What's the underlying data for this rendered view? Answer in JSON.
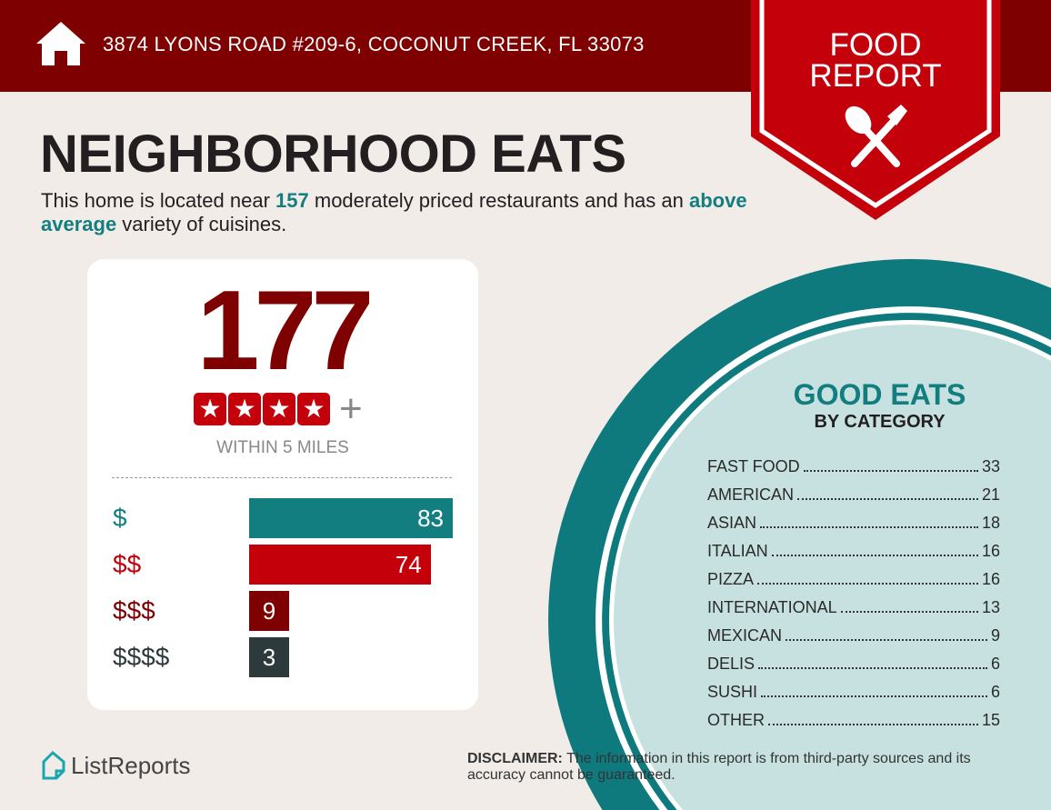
{
  "header": {
    "address": "3874 LYONS ROAD #209-6, COCONUT CREEK, FL 33073",
    "badge_line1": "FOOD",
    "badge_line2": "REPORT"
  },
  "title": "NEIGHBORHOOD EATS",
  "intro": {
    "p1": "This home is located near ",
    "count": "157",
    "p2": " moderately priced restaurants and has an ",
    "variety": "above average",
    "p3": " variety of cuisines."
  },
  "summary": {
    "total": "177",
    "rating_stars": 4,
    "rating_plus": "+",
    "radius_label": "WITHIN 5 MILES"
  },
  "price_tiers": [
    {
      "label": "$",
      "value": 83,
      "color": "#137e80"
    },
    {
      "label": "$$",
      "value": 74,
      "color": "#c4000b"
    },
    {
      "label": "$$$",
      "value": 9,
      "color": "#7e0000"
    },
    {
      "label": "$$$$",
      "value": 3,
      "color": "#2d3a3c"
    }
  ],
  "good_eats": {
    "title": "GOOD EATS",
    "subtitle": "BY CATEGORY",
    "categories": [
      {
        "name": "FAST FOOD",
        "count": "33"
      },
      {
        "name": "AMERICAN",
        "count": "21"
      },
      {
        "name": "ASIAN",
        "count": "18"
      },
      {
        "name": "ITALIAN",
        "count": "16"
      },
      {
        "name": "PIZZA",
        "count": "16"
      },
      {
        "name": "INTERNATIONAL",
        "count": "13"
      },
      {
        "name": "MEXICAN",
        "count": "9"
      },
      {
        "name": "DELIS",
        "count": "6"
      },
      {
        "name": "SUSHI",
        "count": "6"
      },
      {
        "name": "OTHER",
        "count": "15"
      }
    ]
  },
  "footer": {
    "brand": "ListReports",
    "disclaimer_label": "DISCLAIMER:",
    "disclaimer": " The information in this report is from third-party sources and its accuracy cannot be guaranteed."
  },
  "colors": {
    "maroon": "#7e0000",
    "red": "#c4000b",
    "teal": "#137e80",
    "light_teal": "#c6e1df"
  }
}
